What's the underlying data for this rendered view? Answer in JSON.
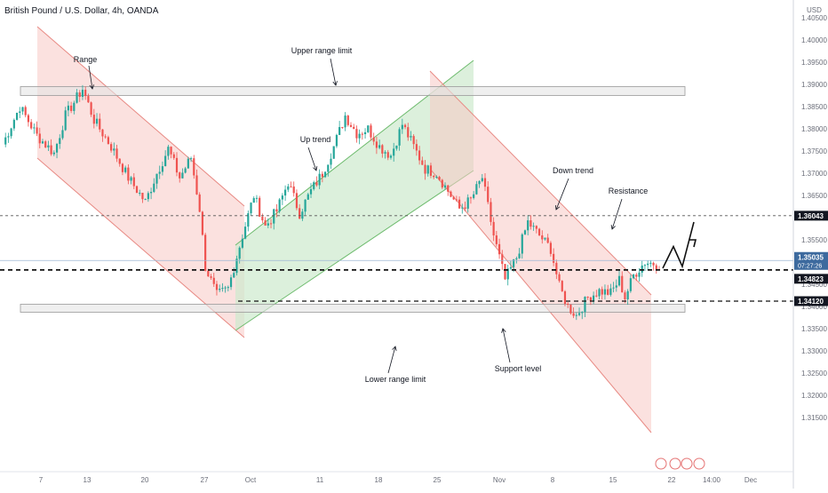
{
  "header": {
    "symbol_title": "British Pound / U.S. Dollar, 4h, OANDA",
    "currency": "USD"
  },
  "colors": {
    "up_candle": "#26a69a",
    "down_candle": "#ef5350",
    "red_channel": "#f8c9c4",
    "green_channel": "#cdeacd",
    "range_box": "#e4e4e4",
    "price_tag": "#131722",
    "current_tag": "#3d6a9e"
  },
  "chart_data": {
    "type": "candlestick",
    "y_axis": {
      "ticks": [
        "1.40500",
        "1.40000",
        "1.39500",
        "1.39000",
        "1.38500",
        "1.38000",
        "1.37500",
        "1.37000",
        "1.36500",
        "1.36000",
        "1.35500",
        "1.35000",
        "1.34500",
        "1.34000",
        "1.33500",
        "1.33000",
        "1.32500",
        "1.32000",
        "1.31500"
      ],
      "range": [
        1.3105,
        1.4092
      ]
    },
    "x_axis": {
      "ticks": [
        "7",
        "13",
        "20",
        "27",
        "Oct",
        "11",
        "18",
        "25",
        "Nov",
        "8",
        "15",
        "22",
        "14:00",
        "Dec"
      ]
    },
    "price_levels": [
      {
        "name": "resistance",
        "value": 1.36043,
        "label": "1.36043",
        "style": "dashed"
      },
      {
        "name": "last-price",
        "value": 1.35035,
        "label": "1.35035",
        "sublabel": "07:27:26",
        "style": "solid"
      },
      {
        "name": "mid-level",
        "value": 1.34823,
        "label": "1.34823",
        "style": "bold-dashed"
      },
      {
        "name": "support",
        "value": 1.3412,
        "label": "1.34120",
        "style": "dashed"
      }
    ],
    "annotations": [
      {
        "name": "range",
        "text": "Range"
      },
      {
        "name": "upper-range-limit",
        "text": "Upper range limit"
      },
      {
        "name": "up-trend",
        "text": "Up trend"
      },
      {
        "name": "down-trend",
        "text": "Down trend"
      },
      {
        "name": "resistance",
        "text": "Resistance"
      },
      {
        "name": "lower-range-limit",
        "text": "Lower range limit"
      },
      {
        "name": "support-level",
        "text": "Support level"
      }
    ],
    "channels": [
      {
        "name": "range-down-channel",
        "trend": "down"
      },
      {
        "name": "up-channel",
        "trend": "up"
      },
      {
        "name": "down-channel",
        "trend": "down"
      }
    ],
    "range_limits": {
      "upper": [
        1.3895,
        1.3875
      ],
      "lower": [
        1.3405,
        1.3387
      ]
    },
    "waypoints": [
      [
        0,
        1.3765
      ],
      [
        6,
        1.385
      ],
      [
        12,
        1.3785
      ],
      [
        18,
        1.3745
      ],
      [
        22,
        1.383
      ],
      [
        28,
        1.389
      ],
      [
        32,
        1.382
      ],
      [
        38,
        1.376
      ],
      [
        44,
        1.369
      ],
      [
        50,
        1.3635
      ],
      [
        54,
        1.37
      ],
      [
        58,
        1.3755
      ],
      [
        62,
        1.369
      ],
      [
        66,
        1.3735
      ],
      [
        69,
        1.362
      ],
      [
        71,
        1.349
      ],
      [
        75,
        1.3425
      ],
      [
        79,
        1.344
      ],
      [
        84,
        1.356
      ],
      [
        88,
        1.365
      ],
      [
        92,
        1.358
      ],
      [
        96,
        1.3615
      ],
      [
        100,
        1.368
      ],
      [
        104,
        1.361
      ],
      [
        108,
        1.366
      ],
      [
        112,
        1.37
      ],
      [
        116,
        1.376
      ],
      [
        120,
        1.383
      ],
      [
        124,
        1.379
      ],
      [
        128,
        1.38
      ],
      [
        132,
        1.376
      ],
      [
        136,
        1.374
      ],
      [
        140,
        1.381
      ],
      [
        144,
        1.376
      ],
      [
        148,
        1.371
      ],
      [
        152,
        1.37
      ],
      [
        156,
        1.366
      ],
      [
        160,
        1.362
      ],
      [
        164,
        1.364
      ],
      [
        168,
        1.369
      ],
      [
        172,
        1.356
      ],
      [
        176,
        1.346
      ],
      [
        180,
        1.351
      ],
      [
        184,
        1.359
      ],
      [
        188,
        1.356
      ],
      [
        192,
        1.353
      ],
      [
        195,
        1.3445
      ],
      [
        198,
        1.34
      ],
      [
        201,
        1.338
      ],
      [
        205,
        1.342
      ],
      [
        209,
        1.3435
      ],
      [
        213,
        1.343
      ],
      [
        216,
        1.346
      ],
      [
        218,
        1.342
      ],
      [
        221,
        1.347
      ],
      [
        225,
        1.35
      ],
      [
        230,
        1.3495
      ]
    ],
    "projection": [
      [
        1.3486
      ],
      [
        1.3535
      ],
      [
        1.349
      ],
      [
        1.359
      ]
    ]
  }
}
